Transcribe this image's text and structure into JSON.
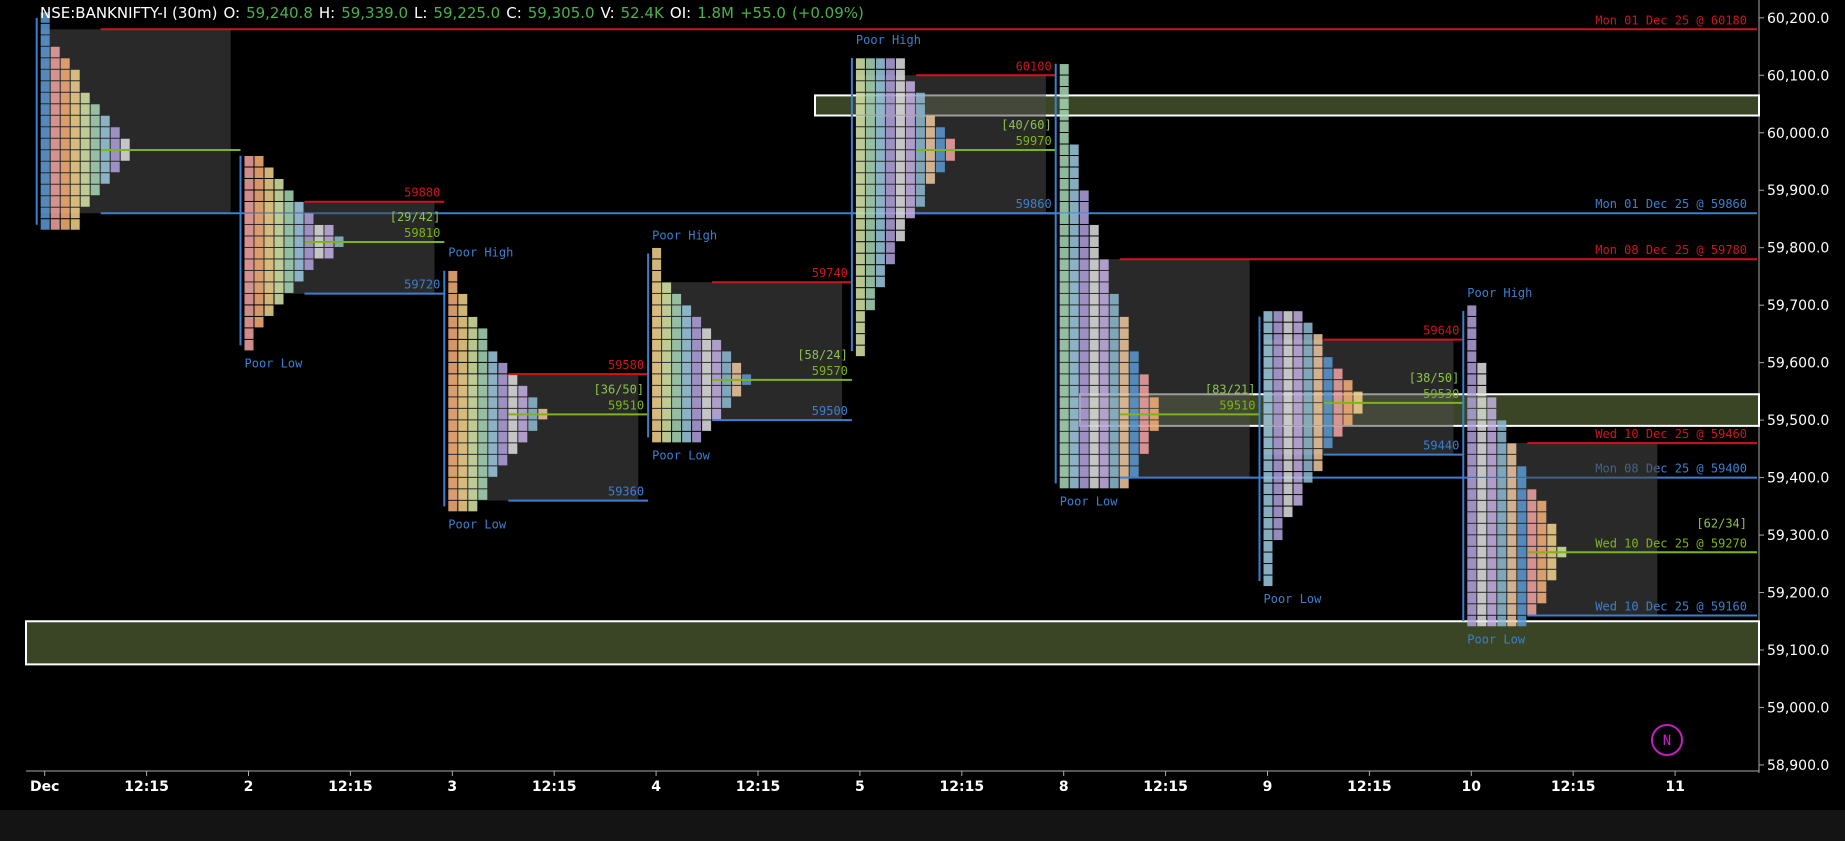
{
  "header": {
    "symbol": "NSE:BANKNIFTY-I (30m)",
    "fields": [
      {
        "label": "O:",
        "value": "59,240.8"
      },
      {
        "label": "H:",
        "value": "59,339.0"
      },
      {
        "label": "L:",
        "value": "59,225.0"
      },
      {
        "label": "C:",
        "value": "59,305.0"
      },
      {
        "label": "V:",
        "value": "52.4K"
      },
      {
        "label": "OI:",
        "value": "1.8M"
      }
    ],
    "change": "+55.0",
    "change_pct": "(+0.09%)"
  },
  "badge": "N",
  "chart_data": {
    "type": "market-profile",
    "ylim": [
      58886,
      60231
    ],
    "yticks": [
      {
        "value": 60200,
        "label": "60,200.0"
      },
      {
        "value": 60100,
        "label": "60,100.0"
      },
      {
        "value": 60000,
        "label": "60,000.0"
      },
      {
        "value": 59900,
        "label": "59,900.0"
      },
      {
        "value": 59800,
        "label": "59,800.0"
      },
      {
        "value": 59700,
        "label": "59,700.0"
      },
      {
        "value": 59600,
        "label": "59,600.0"
      },
      {
        "value": 59500,
        "label": "59,500.0"
      },
      {
        "value": 59400,
        "label": "59,400.0"
      },
      {
        "value": 59300,
        "label": "59,300.0"
      },
      {
        "value": 59200,
        "label": "59,200.0"
      },
      {
        "value": 59100,
        "label": "59,100.0"
      },
      {
        "value": 59000,
        "label": "59,000.0"
      },
      {
        "value": 58900,
        "label": "58,900.0"
      }
    ],
    "categories": [
      "Dec",
      "12:15",
      "2",
      "12:15",
      "3",
      "12:15",
      "4",
      "12:15",
      "5",
      "12:15",
      "8",
      "12:15",
      "9",
      "12:15",
      "10",
      "12:15",
      "11"
    ],
    "zones": [
      {
        "top": 60065,
        "bottom": 60030
      },
      {
        "top": 59545,
        "bottom": 59490
      },
      {
        "top": 59150,
        "bottom": 59075
      }
    ],
    "sessions": [
      {
        "high": 60200,
        "low": 59840,
        "poc": 59970,
        "vah": 60180,
        "vah_label": "Mon 01 Dec 25 @ 60180",
        "val": 59860,
        "val_label": "Mon 01 Dec 25 @ 59860"
      },
      {
        "high": 59960,
        "low": 59630,
        "poc": 59810,
        "poc_label": "59810",
        "poc_note": "[29/42]",
        "vah": 59880,
        "vah_label": "59880",
        "val": 59720,
        "val_label": "59720",
        "poor_low": "Poor Low"
      },
      {
        "high": 59760,
        "low": 59350,
        "poc": 59510,
        "poc_label": "59510",
        "poc_note": "[36/50]",
        "vah": 59580,
        "vah_label": "59580",
        "val": 59360,
        "val_label": "59360",
        "poor_high": "Poor High",
        "poor_low": "Poor Low"
      },
      {
        "high": 59790,
        "low": 59470,
        "poc": 59570,
        "poc_label": "59570",
        "poc_note": "[58/24]",
        "vah": 59740,
        "vah_label": "59740",
        "val": 59500,
        "val_label": "59500",
        "poor_high": "Poor High",
        "poor_low": "Poor Low"
      },
      {
        "high": 60130,
        "low": 59620,
        "poc": 59970,
        "poc_label": "59970",
        "poc_note": "[40/60]",
        "vah": 60100,
        "vah_label": "60100",
        "val": 59860,
        "val_label": "59860",
        "poor_high": "Poor High"
      },
      {
        "high": 60120,
        "low": 59390,
        "poc": 59510,
        "poc_label": "59510",
        "poc_note": "[83/21]",
        "vah": 59780,
        "vah_label": "Mon 08 Dec 25 @ 59780",
        "val": 59400,
        "val_label": "Mon 08 Dec 25 @ 59400",
        "poor_low": "Poor Low"
      },
      {
        "high": 59680,
        "low": 59220,
        "poc": 59530,
        "poc_label": "59530",
        "poc_note": "[38/50]",
        "vah": 59640,
        "vah_label": "59640",
        "val": 59440,
        "val_label": "59440",
        "poor_low": "Poor Low"
      },
      {
        "high": 59690,
        "low": 59150,
        "poc": 59270,
        "poc_label": "Wed 10 Dec 25 @ 59270",
        "poc_note": "[62/34]",
        "vah": 59460,
        "vah_label": "Wed 10 Dec 25 @ 59460",
        "val": 59160,
        "val_label": "Wed 10 Dec 25 @ 59160",
        "poor_high": "Poor High",
        "poor_low": "Poor Low"
      }
    ]
  }
}
